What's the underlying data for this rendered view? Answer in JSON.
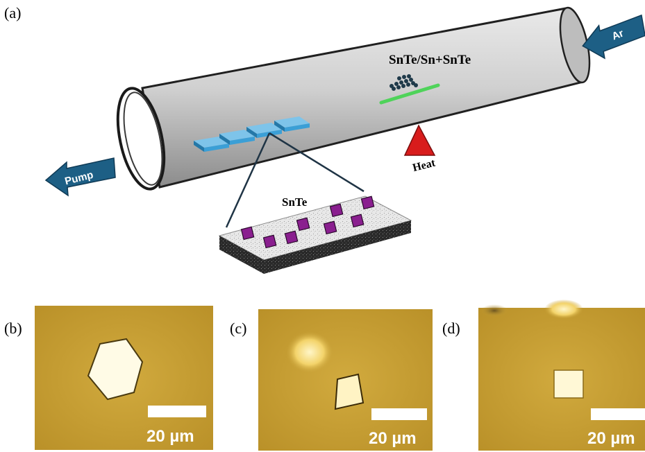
{
  "panels": {
    "a": "(a)",
    "b": "(b)",
    "c": "(c)",
    "d": "(d)"
  },
  "tube_label": "SnTe/Sn+SnTe",
  "substrate_label": "SnTe",
  "heat_label": "Heat",
  "pump_label": "Pump",
  "ar_label": "Ar",
  "scale_bars": {
    "b": "20 µm",
    "c": "20 µm",
    "d": "20 µm"
  },
  "colors": {
    "tube_body": "#cfcfcf",
    "substrate_tile": "#3b9fd6",
    "source_line": "#4fd35a",
    "heat_triangle": "#d81c1c",
    "crystal": "#8a1f8f",
    "arrow": "#1d5f85",
    "micrograph_bg": "#c9a33a"
  }
}
